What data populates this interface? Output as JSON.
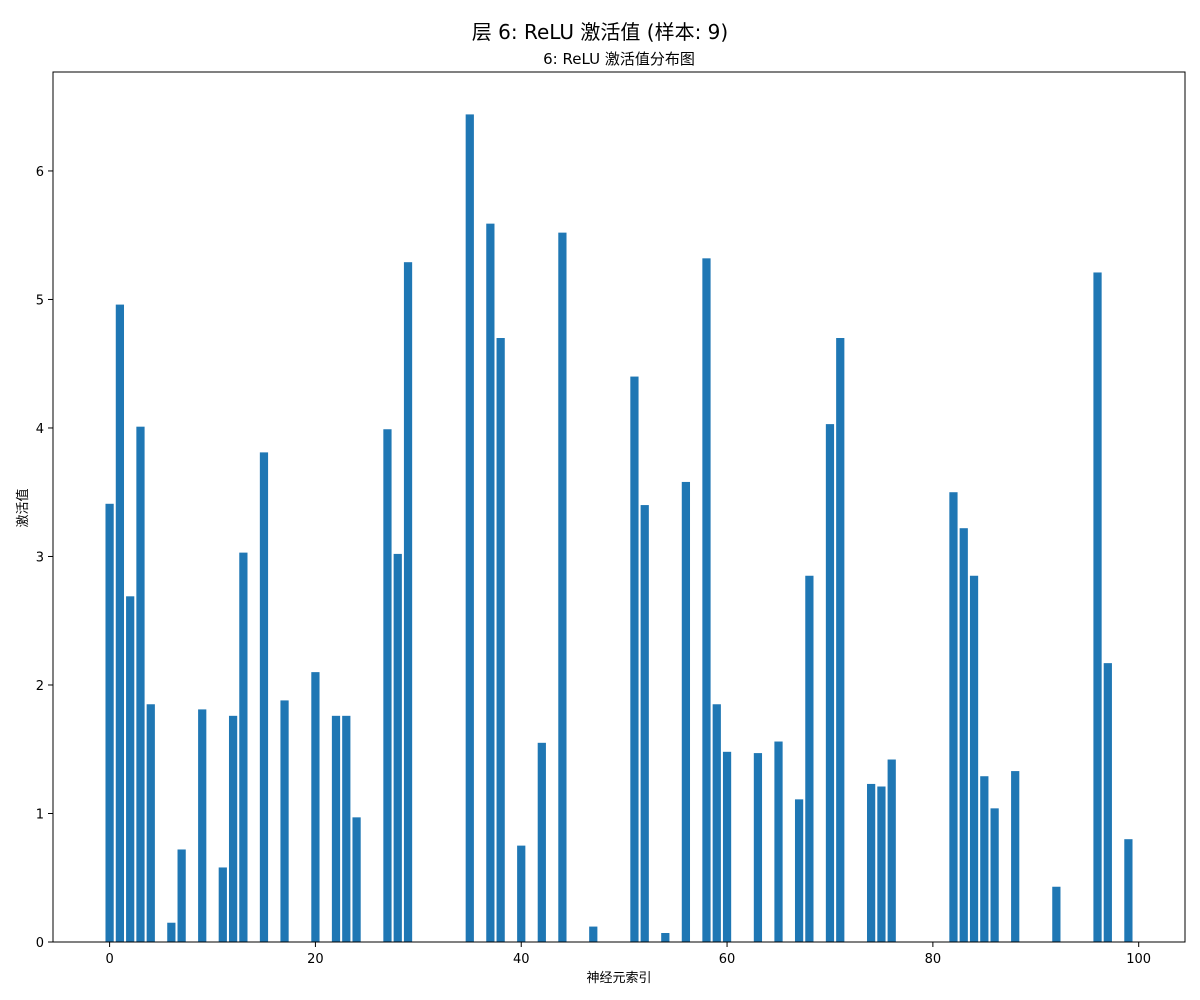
{
  "suptitle": "层 6: ReLU 激活值 (样本: 9)",
  "chart_data": {
    "type": "bar",
    "title": "6: ReLU 激活值分布图",
    "xlabel": "神经元索引",
    "ylabel": "激活值",
    "xlim": [
      -5.5,
      104.5
    ],
    "ylim": [
      0,
      6.77
    ],
    "xticks": [
      0,
      20,
      40,
      60,
      80,
      100
    ],
    "yticks": [
      0,
      1,
      2,
      3,
      4,
      5,
      6
    ],
    "grid": false,
    "bar_color": "#1f77b4",
    "x": [
      0,
      1,
      2,
      3,
      4,
      5,
      6,
      7,
      8,
      9,
      10,
      11,
      12,
      13,
      14,
      15,
      16,
      17,
      18,
      19,
      20,
      21,
      22,
      23,
      24,
      25,
      26,
      27,
      28,
      29,
      30,
      31,
      32,
      33,
      34,
      35,
      36,
      37,
      38,
      39,
      40,
      41,
      42,
      43,
      44,
      45,
      46,
      47,
      48,
      49,
      50,
      51,
      52,
      53,
      54,
      55,
      56,
      57,
      58,
      59,
      60,
      61,
      62,
      63,
      64,
      65,
      66,
      67,
      68,
      69,
      70,
      71,
      72,
      73,
      74,
      75,
      76,
      77,
      78,
      79,
      80,
      81,
      82,
      83,
      84,
      85,
      86,
      87,
      88,
      89,
      90,
      91,
      92,
      93,
      94,
      95,
      96,
      97,
      98,
      99
    ],
    "values": [
      3.41,
      4.96,
      2.69,
      4.01,
      1.85,
      0,
      0.15,
      0.72,
      0,
      1.81,
      0,
      0.58,
      1.76,
      3.03,
      0,
      3.81,
      0,
      1.88,
      0,
      0,
      2.1,
      0,
      1.76,
      1.76,
      0.97,
      0,
      0,
      3.99,
      3.02,
      5.29,
      0,
      0,
      0,
      0,
      0,
      6.44,
      0,
      5.59,
      4.7,
      0,
      0.75,
      0,
      1.55,
      0,
      5.52,
      0,
      0,
      0.12,
      0,
      0,
      0,
      4.4,
      3.4,
      0,
      0.07,
      0,
      3.58,
      0,
      5.32,
      1.85,
      1.48,
      0,
      0,
      1.47,
      0,
      1.56,
      0,
      1.11,
      2.85,
      0,
      4.03,
      4.7,
      0,
      0,
      1.23,
      1.21,
      1.42,
      0,
      0,
      0,
      0,
      0,
      3.5,
      3.22,
      2.85,
      1.29,
      1.04,
      0,
      1.33,
      0,
      0,
      0,
      0.43,
      0,
      0,
      0,
      5.21,
      2.17,
      0,
      0.8
    ]
  }
}
